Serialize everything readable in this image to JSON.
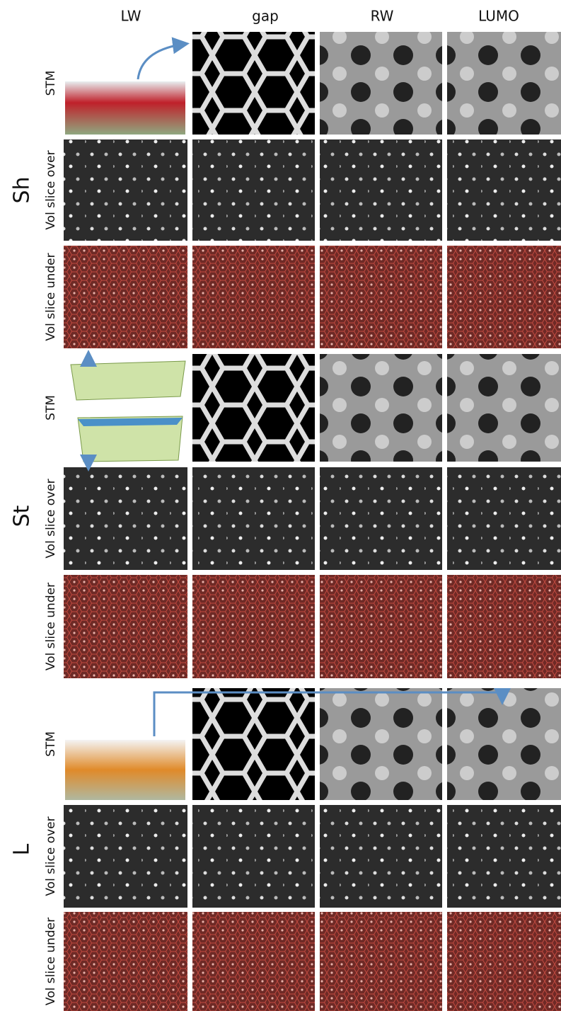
{
  "header": {
    "columns": [
      "LW",
      "gap",
      "RW",
      "LUMO"
    ]
  },
  "groups": [
    {
      "label": "Sh",
      "rows": [
        "STM",
        "Vol slice over",
        "Vol slice under"
      ]
    },
    {
      "label": "St",
      "rows": [
        "STM",
        "Vol slice over",
        "Vol slice under"
      ]
    },
    {
      "label": "L",
      "rows": [
        "STM",
        "Vol slice over",
        "Vol slice under"
      ]
    }
  ]
}
